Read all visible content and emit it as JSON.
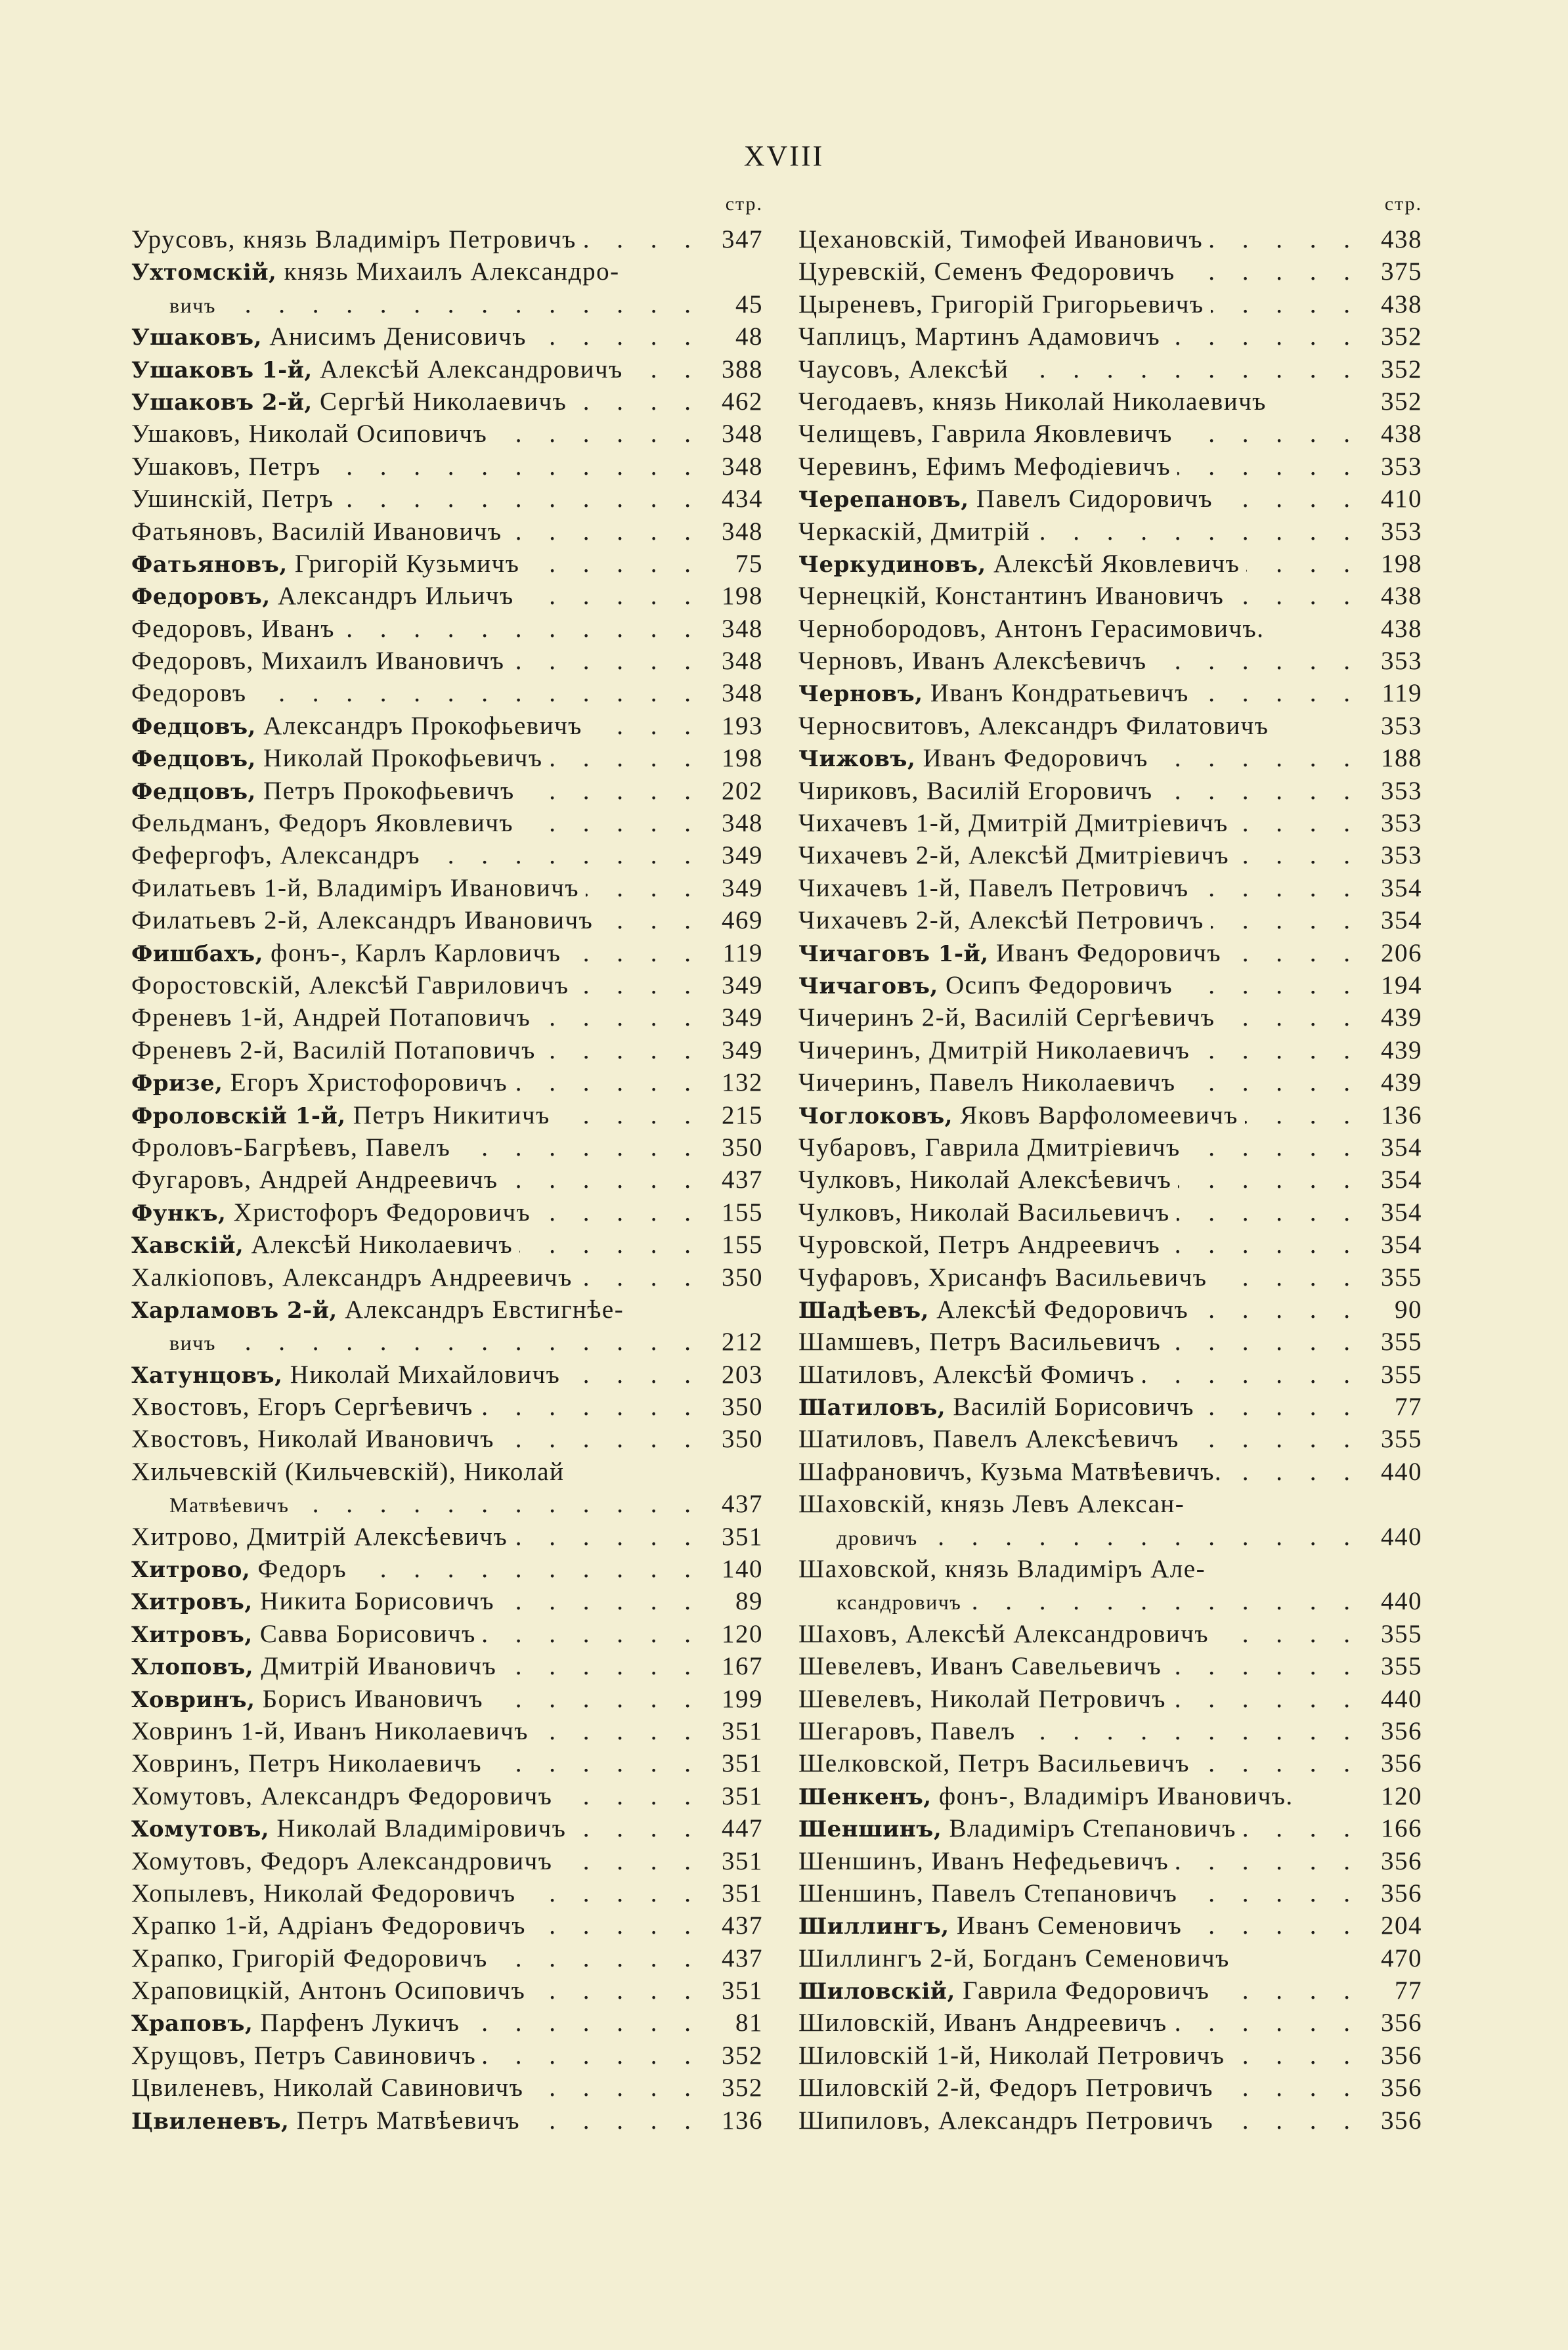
{
  "page_number": "XVIII",
  "page_col_label": "стр.",
  "left": [
    {
      "bold": "",
      "rest": "Урусовъ, князь Владиміръ Петровичъ",
      "page": "347"
    },
    {
      "bold": "Ухтомскій,",
      "rest": " князь Михаилъ Александро-",
      "page": "",
      "noleader": true
    },
    {
      "bold": "",
      "rest": "вичъ",
      "page": "45",
      "indent": true
    },
    {
      "bold": "Ушаковъ,",
      "rest": " Анисимъ Денисовичъ",
      "page": "48"
    },
    {
      "bold": "Ушаковъ 1-й,",
      "rest": " Алексѣй Александровичъ",
      "page": "388"
    },
    {
      "bold": "Ушаковъ 2-й,",
      "rest": " Сергѣй Николаевичъ",
      "page": "462"
    },
    {
      "bold": "",
      "rest": "Ушаковъ, Николай Осиповичъ",
      "page": "348"
    },
    {
      "bold": "",
      "rest": "Ушаковъ, Петръ",
      "page": "348"
    },
    {
      "bold": "",
      "rest": "Ушинскій, Петръ",
      "page": "434"
    },
    {
      "bold": "",
      "rest": "Фатьяновъ, Василій Ивановичъ",
      "page": "348"
    },
    {
      "bold": "Фатьяновъ,",
      "rest": " Григорій Кузьмичъ",
      "page": "75"
    },
    {
      "bold": "Федоровъ,",
      "rest": " Александръ Ильичъ",
      "page": "198"
    },
    {
      "bold": "",
      "rest": "Федоровъ, Иванъ",
      "page": "348"
    },
    {
      "bold": "",
      "rest": "Федоровъ, Михаилъ Ивановичъ",
      "page": "348"
    },
    {
      "bold": "",
      "rest": "Федоровъ",
      "page": "348"
    },
    {
      "bold": "Федцовъ,",
      "rest": " Александръ Прокофьевичъ",
      "page": "193"
    },
    {
      "bold": "Федцовъ,",
      "rest": " Николай Прокофьевичъ",
      "page": "198"
    },
    {
      "bold": "Федцовъ,",
      "rest": " Петръ Прокофьевичъ",
      "page": "202"
    },
    {
      "bold": "",
      "rest": "Фельдманъ, Федоръ Яковлевичъ",
      "page": "348"
    },
    {
      "bold": "",
      "rest": "Фефергофъ, Александръ",
      "page": "349"
    },
    {
      "bold": "",
      "rest": "Филатьевъ 1-й, Владиміръ Ивановичъ",
      "page": "349"
    },
    {
      "bold": "",
      "rest": "Филатьевъ 2-й, Александръ Ивановичъ",
      "page": "469"
    },
    {
      "bold": "Фишбахъ,",
      "rest": " фонъ-, Карлъ Карловичъ",
      "page": "119"
    },
    {
      "bold": "",
      "rest": "Форостовскій, Алексѣй Гавриловичъ",
      "page": "349"
    },
    {
      "bold": "",
      "rest": "Френевъ 1-й, Андрей Потаповичъ",
      "page": "349"
    },
    {
      "bold": "",
      "rest": "Френевъ 2-й, Василій Потаповичъ",
      "page": "349"
    },
    {
      "bold": "Фризе,",
      "rest": " Егоръ Христофоровичъ",
      "page": "132"
    },
    {
      "bold": "Фроловскій 1-й,",
      "rest": " Петръ Никитичъ",
      "page": "215"
    },
    {
      "bold": "",
      "rest": "Фроловъ-Багрѣевъ, Павелъ",
      "page": "350"
    },
    {
      "bold": "",
      "rest": "Фугаровъ, Андрей Андреевичъ",
      "page": "437"
    },
    {
      "bold": "Функъ,",
      "rest": " Христофоръ Федоровичъ",
      "page": "155"
    },
    {
      "bold": "Хавскій,",
      "rest": " Алексѣй Николаевичъ",
      "page": "155"
    },
    {
      "bold": "",
      "rest": "Халкіоповъ, Александръ Андреевичъ",
      "page": "350"
    },
    {
      "bold": "Харламовъ 2-й,",
      "rest": " Александръ Евстигнѣе-",
      "page": "",
      "noleader": true
    },
    {
      "bold": "",
      "rest": "вичъ",
      "page": "212",
      "indent": true
    },
    {
      "bold": "Хатунцовъ,",
      "rest": " Николай Михайловичъ",
      "page": "203"
    },
    {
      "bold": "",
      "rest": "Хвостовъ, Егоръ Сергѣевичъ",
      "page": "350"
    },
    {
      "bold": "",
      "rest": "Хвостовъ, Николай Ивановичъ",
      "page": "350"
    },
    {
      "bold": "",
      "rest": "Хильчевскій (Кильчевскій), Николай",
      "page": "",
      "noleader": true
    },
    {
      "bold": "",
      "rest": "Матвѣевичъ",
      "page": "437",
      "indent": true
    },
    {
      "bold": "",
      "rest": "Хитрово, Дмитрій Алексѣевичъ",
      "page": "351"
    },
    {
      "bold": "Хитрово,",
      "rest": " Федоръ",
      "page": "140"
    },
    {
      "bold": "Хитровъ,",
      "rest": " Никита Борисовичъ",
      "page": "89"
    },
    {
      "bold": "Хитровъ,",
      "rest": " Савва Борисовичъ",
      "page": "120"
    },
    {
      "bold": "Хлоповъ,",
      "rest": " Дмитрій Ивановичъ",
      "page": "167"
    },
    {
      "bold": "Ховринъ,",
      "rest": " Борисъ Ивановичъ",
      "page": "199"
    },
    {
      "bold": "",
      "rest": "Ховринъ 1-й, Иванъ Николаевичъ",
      "page": "351"
    },
    {
      "bold": "",
      "rest": "Ховринъ, Петръ Николаевичъ",
      "page": "351"
    },
    {
      "bold": "",
      "rest": "Хомутовъ, Александръ Федоровичъ",
      "page": "351"
    },
    {
      "bold": "Хомутовъ,",
      "rest": " Николай Владиміровичъ",
      "page": "447"
    },
    {
      "bold": "",
      "rest": "Хомутовъ, Федоръ Александровичъ",
      "page": "351"
    },
    {
      "bold": "",
      "rest": "Хопылевъ, Николай Федоровичъ",
      "page": "351"
    },
    {
      "bold": "",
      "rest": "Храпко 1-й, Адріанъ Федоровичъ",
      "page": "437"
    },
    {
      "bold": "",
      "rest": "Храпко, Григорій Федоровичъ",
      "page": "437"
    },
    {
      "bold": "",
      "rest": "Храповицкій, Антонъ Осиповичъ",
      "page": "351"
    },
    {
      "bold": "Храповъ,",
      "rest": " Парфенъ Лукичъ",
      "page": "81"
    },
    {
      "bold": "",
      "rest": "Хрущовъ, Петръ Савиновичъ",
      "page": "352"
    },
    {
      "bold": "",
      "rest": "Цвиленевъ, Николай Савиновичъ",
      "page": "352"
    },
    {
      "bold": "Цвиленевъ,",
      "rest": " Петръ Матвѣевичъ",
      "page": "136"
    }
  ],
  "right": [
    {
      "bold": "",
      "rest": "Цехановскій, Тимофей Ивановичъ",
      "page": "438"
    },
    {
      "bold": "",
      "rest": "Цуревскій, Семенъ Федоровичъ",
      "page": "375"
    },
    {
      "bold": "",
      "rest": "Цыреневъ, Григорій Григорьевичъ",
      "page": "438"
    },
    {
      "bold": "",
      "rest": "Чаплицъ, Мартинъ Адамовичъ",
      "page": "352"
    },
    {
      "bold": "",
      "rest": "Чаусовъ, Алексѣй",
      "page": "352"
    },
    {
      "bold": "",
      "rest": "Чегодаевъ, князь Николай Николаевичъ",
      "page": "352",
      "noleader": true
    },
    {
      "bold": "",
      "rest": "Челищевъ, Гаврила Яковлевичъ",
      "page": "438"
    },
    {
      "bold": "",
      "rest": "Черевинъ, Ефимъ Мефодіевичъ",
      "page": "353"
    },
    {
      "bold": "Черепановъ,",
      "rest": " Павелъ Сидоровичъ",
      "page": "410"
    },
    {
      "bold": "",
      "rest": "Черкаскій, Дмитрій",
      "page": "353"
    },
    {
      "bold": "Черкудиновъ,",
      "rest": " Алексѣй Яковлевичъ",
      "page": "198"
    },
    {
      "bold": "",
      "rest": "Чернецкій, Константинъ Ивановичъ",
      "page": "438"
    },
    {
      "bold": "",
      "rest": "Чернобородовъ, Антонъ Герасимовичъ.",
      "page": "438",
      "noleader": true
    },
    {
      "bold": "",
      "rest": "Черновъ, Иванъ Алексѣевичъ",
      "page": "353"
    },
    {
      "bold": "Черновъ,",
      "rest": " Иванъ Кондратьевичъ",
      "page": "119"
    },
    {
      "bold": "",
      "rest": "Черносвитовъ, Александръ Филатовичъ",
      "page": "353",
      "noleader": true
    },
    {
      "bold": "Чижовъ,",
      "rest": " Иванъ Федоровичъ",
      "page": "188"
    },
    {
      "bold": "",
      "rest": "Чириковъ, Василій Егоровичъ",
      "page": "353"
    },
    {
      "bold": "",
      "rest": "Чихачевъ 1-й, Дмитрій Дмитріевичъ",
      "page": "353"
    },
    {
      "bold": "",
      "rest": "Чихачевъ 2-й, Алексѣй Дмитріевичъ",
      "page": "353"
    },
    {
      "bold": "",
      "rest": "Чихачевъ 1-й, Павелъ Петровичъ",
      "page": "354"
    },
    {
      "bold": "",
      "rest": "Чихачевъ 2-й, Алексѣй Петровичъ",
      "page": "354"
    },
    {
      "bold": "Чичаговъ 1-й,",
      "rest": " Иванъ Федоровичъ",
      "page": "206"
    },
    {
      "bold": "Чичаговъ,",
      "rest": " Осипъ Федоровичъ",
      "page": "194"
    },
    {
      "bold": "",
      "rest": "Чичеринъ 2-й, Василій Сергѣевичъ",
      "page": "439"
    },
    {
      "bold": "",
      "rest": "Чичеринъ, Дмитрій Николаевичъ",
      "page": "439"
    },
    {
      "bold": "",
      "rest": "Чичеринъ, Павелъ Николаевичъ",
      "page": "439"
    },
    {
      "bold": "Чоглоковъ,",
      "rest": " Яковъ Варфоломеевичъ",
      "page": "136"
    },
    {
      "bold": "",
      "rest": "Чубаровъ, Гаврила Дмитріевичъ",
      "page": "354"
    },
    {
      "bold": "",
      "rest": "Чулковъ, Николай Алексѣевичъ",
      "page": "354"
    },
    {
      "bold": "",
      "rest": "Чулковъ, Николай Васильевичъ",
      "page": "354"
    },
    {
      "bold": "",
      "rest": "Чуровской, Петръ Андреевичъ",
      "page": "354"
    },
    {
      "bold": "",
      "rest": "Чуфаровъ, Хрисанфъ Васильевичъ",
      "page": "355"
    },
    {
      "bold": "Шадѣевъ,",
      "rest": " Алексѣй Федоровичъ",
      "page": "90"
    },
    {
      "bold": "",
      "rest": "Шамшевъ, Петръ Васильевичъ",
      "page": "355"
    },
    {
      "bold": "",
      "rest": "Шатиловъ, Алексѣй Фомичъ",
      "page": "355"
    },
    {
      "bold": "Шатиловъ,",
      "rest": " Василій Борисовичъ",
      "page": "77"
    },
    {
      "bold": "",
      "rest": "Шатиловъ, Павелъ Алексѣевичъ",
      "page": "355"
    },
    {
      "bold": "",
      "rest": "Шафрановичъ, Кузьма Матвѣевичъ.",
      "page": "440"
    },
    {
      "bold": "",
      "rest": "Шаховскій, князь Левъ Алексан-",
      "page": "",
      "noleader": true
    },
    {
      "bold": "",
      "rest": "дровичъ",
      "page": "440",
      "indent": true
    },
    {
      "bold": "",
      "rest": "Шаховской, князь Владиміръ Але-",
      "page": "",
      "noleader": true
    },
    {
      "bold": "",
      "rest": "ксандровичъ",
      "page": "440",
      "indent": true
    },
    {
      "bold": "",
      "rest": "Шаховъ, Алексѣй Александровичъ",
      "page": "355"
    },
    {
      "bold": "",
      "rest": "Шевелевъ, Иванъ Савельевичъ",
      "page": "355"
    },
    {
      "bold": "",
      "rest": "Шевелевъ, Николай Петровичъ",
      "page": "440"
    },
    {
      "bold": "",
      "rest": "Шегаровъ, Павелъ",
      "page": "356"
    },
    {
      "bold": "",
      "rest": "Шелковской, Петръ Васильевичъ",
      "page": "356"
    },
    {
      "bold": "Шенкенъ,",
      "rest": " фонъ-, Владиміръ Ивановичъ.",
      "page": "120",
      "noleader": true
    },
    {
      "bold": "Шеншинъ,",
      "rest": " Владиміръ Степановичъ",
      "page": "166"
    },
    {
      "bold": "",
      "rest": "Шеншинъ, Иванъ Нефедьевичъ",
      "page": "356"
    },
    {
      "bold": "",
      "rest": "Шеншинъ, Павелъ Степановичъ",
      "page": "356"
    },
    {
      "bold": "Шиллингъ,",
      "rest": " Иванъ Семеновичъ",
      "page": "204"
    },
    {
      "bold": "",
      "rest": "Шиллингъ 2-й, Богданъ Семеновичъ",
      "page": "470",
      "noleader": true
    },
    {
      "bold": "Шиловскій,",
      "rest": " Гаврила Федоровичъ",
      "page": "77"
    },
    {
      "bold": "",
      "rest": "Шиловскій, Иванъ Андреевичъ",
      "page": "356"
    },
    {
      "bold": "",
      "rest": "Шиловскій 1-й, Николай Петровичъ",
      "page": "356"
    },
    {
      "bold": "",
      "rest": "Шиловскій 2-й, Федоръ Петровичъ",
      "page": "356"
    },
    {
      "bold": "",
      "rest": "Шипиловъ, Александръ Петровичъ",
      "page": "356"
    }
  ]
}
